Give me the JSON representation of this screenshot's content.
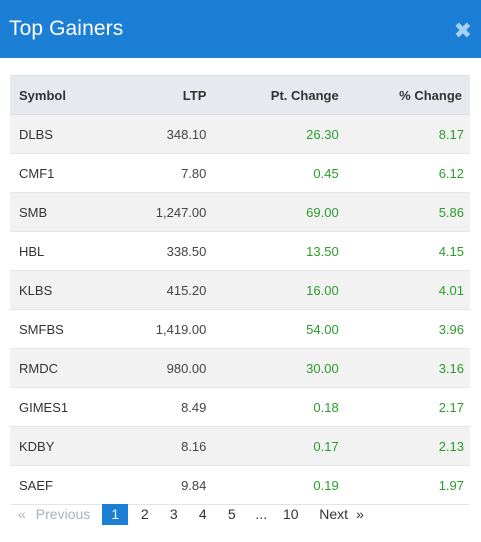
{
  "modal": {
    "title": "Top Gainers",
    "close_icon": "close-icon"
  },
  "table": {
    "headers": {
      "symbol": "Symbol",
      "ltp": "LTP",
      "pt_change": "Pt. Change",
      "pct_change": "% Change"
    },
    "rows": [
      {
        "symbol": "DLBS",
        "ltp": "348.10",
        "pt": "26.30",
        "pct": "8.17"
      },
      {
        "symbol": "CMF1",
        "ltp": "7.80",
        "pt": "0.45",
        "pct": "6.12"
      },
      {
        "symbol": "SMB",
        "ltp": "1,247.00",
        "pt": "69.00",
        "pct": "5.86"
      },
      {
        "symbol": "HBL",
        "ltp": "338.50",
        "pt": "13.50",
        "pct": "4.15"
      },
      {
        "symbol": "KLBS",
        "ltp": "415.20",
        "pt": "16.00",
        "pct": "4.01"
      },
      {
        "symbol": "SMFBS",
        "ltp": "1,419.00",
        "pt": "54.00",
        "pct": "3.96"
      },
      {
        "symbol": "RMDC",
        "ltp": "980.00",
        "pt": "30.00",
        "pct": "3.16"
      },
      {
        "symbol": "GIMES1",
        "ltp": "8.49",
        "pt": "0.18",
        "pct": "2.17"
      },
      {
        "symbol": "KDBY",
        "ltp": "8.16",
        "pt": "0.17",
        "pct": "2.13"
      },
      {
        "symbol": "SAEF",
        "ltp": "9.84",
        "pt": "0.19",
        "pct": "1.97"
      }
    ]
  },
  "pagination": {
    "prev_arrow": "«",
    "prev_label": "Previous",
    "pages": [
      "1",
      "2",
      "3",
      "4",
      "5"
    ],
    "active_page": "1",
    "ellipsis": "...",
    "last_page": "10",
    "next_label": "Next",
    "next_arrow": "»"
  },
  "colors": {
    "header_bg": "#1b7fd6",
    "positive": "#2a9d2a",
    "active_page_bg": "#1b7fd6"
  }
}
